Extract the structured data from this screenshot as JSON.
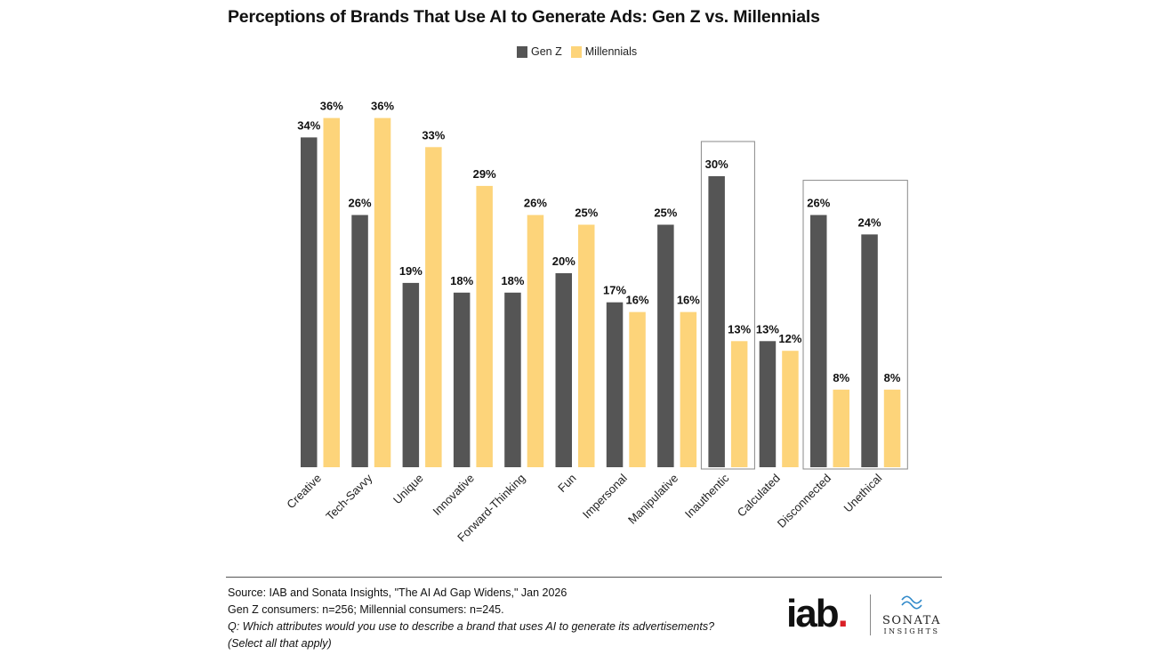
{
  "chart_data": {
    "type": "bar",
    "title": "Perceptions of Brands That Use AI to Generate Ads: Gen Z vs. Millennials",
    "xlabel": "",
    "ylabel": "",
    "ylim": [
      0,
      37
    ],
    "legend_position": "top-center",
    "categories": [
      "Creative",
      "Tech-Savvy",
      "Unique",
      "Innovative",
      "Forward-Thinking",
      "Fun",
      "Impersonal",
      "Manipulative",
      "Inauthentic",
      "Calculated",
      "Disconnected",
      "Unethical"
    ],
    "series": [
      {
        "name": "Gen Z",
        "color": "#555555",
        "values": [
          34,
          26,
          19,
          18,
          18,
          20,
          17,
          25,
          30,
          13,
          26,
          24
        ]
      },
      {
        "name": "Millennials",
        "color": "#fdd47a",
        "values": [
          36,
          36,
          33,
          29,
          26,
          25,
          16,
          16,
          13,
          12,
          8,
          8
        ]
      }
    ],
    "highlight_groups": [
      [
        "Inauthentic"
      ],
      [
        "Disconnected",
        "Unethical"
      ]
    ]
  },
  "footer": {
    "source": "Source: IAB and Sonata Insights, \"The AI Ad Gap Widens,\" Jan 2026",
    "sample": "Gen Z consumers: n=256; Millennial consumers: n=245.",
    "question": "Q: Which attributes would you use to describe a brand that uses AI to generate its advertisements?",
    "note": "(Select all that apply)"
  },
  "logos": {
    "iab_text": "iab",
    "iab_dot": ".",
    "sonata_name": "SONATA",
    "sonata_sub": "INSIGHTS"
  }
}
